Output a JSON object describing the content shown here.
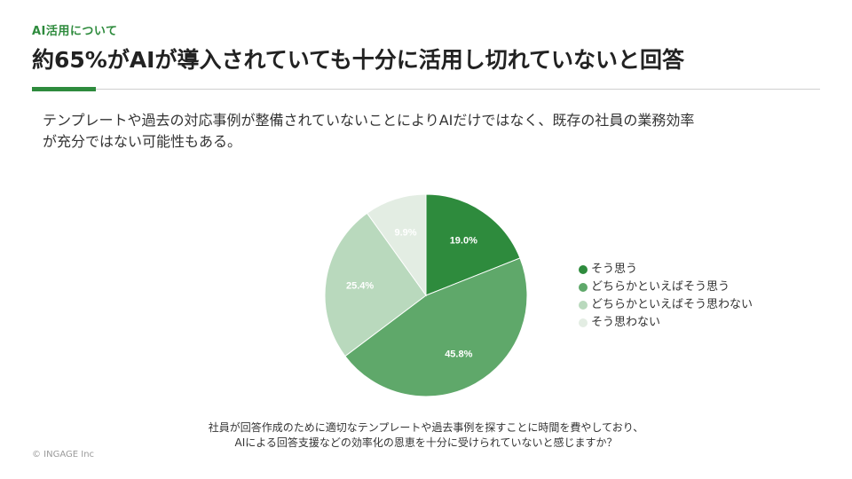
{
  "slide": {
    "section_label": "AI活用について",
    "title": "約65%がAIが導入されていても十分に活用し切れていないと回答",
    "description_line1": "テンプレートや過去の対応事例が整備されていないことによりAIだけではなく、既存の社員の業務効率",
    "description_line2": "が充分ではない可能性もある。",
    "question_line1": "社員が回答作成のために適切なテンプレートや過去事例を探すことに時間を費やしており、",
    "question_line2": "AIによる回答支援などの効率化の恩恵を十分に受けられていないと感じますか？",
    "copyright": "© INGAGE Inc",
    "accent_color": "#2e8b3d"
  },
  "chart_data": {
    "type": "pie",
    "title": "",
    "categories": [
      "そう思う",
      "どちらかといえばそう思う",
      "どちらかといえばそう思わない",
      "そう思わない"
    ],
    "values": [
      19.0,
      45.8,
      25.4,
      9.9
    ],
    "labels": [
      "19.0%",
      "45.8%",
      "25.4%",
      "9.9%"
    ],
    "colors": [
      "#2e8b3d",
      "#5fa86a",
      "#b9d9bd",
      "#e3ede3"
    ],
    "label_colors": [
      "#ffffff",
      "#ffffff",
      "#ffffff",
      "#ffffff"
    ],
    "start_angle_deg": 0,
    "direction": "clockwise",
    "legend_position": "right"
  }
}
